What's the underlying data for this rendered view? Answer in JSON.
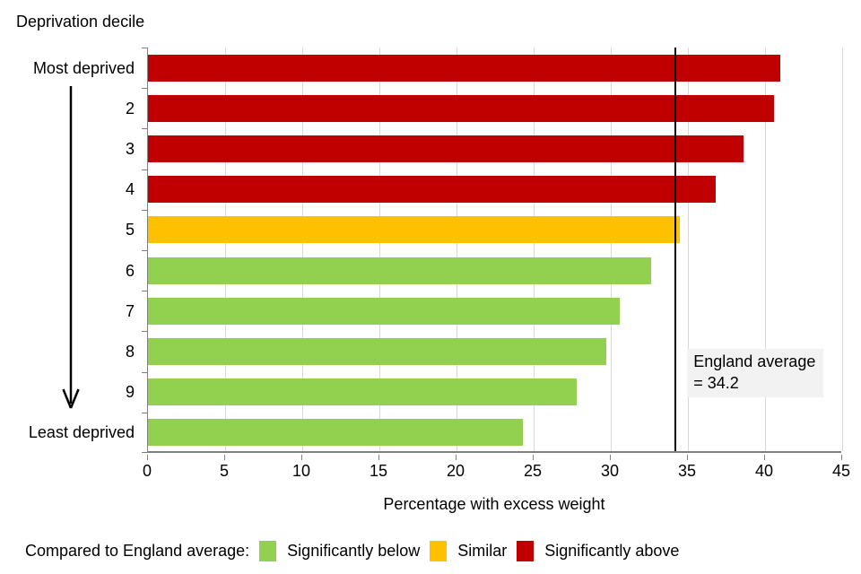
{
  "chart_data": {
    "type": "bar",
    "orientation": "horizontal",
    "title": "Deprivation decile",
    "xlabel": "Percentage with excess weight",
    "ylabel": "Deprivation decile",
    "categories": [
      "Most deprived",
      "2",
      "3",
      "4",
      "5",
      "6",
      "7",
      "8",
      "9",
      "Least deprived"
    ],
    "values": [
      41.0,
      40.6,
      38.6,
      36.8,
      34.5,
      32.6,
      30.6,
      29.7,
      27.8,
      24.3
    ],
    "statuses": [
      "above",
      "above",
      "above",
      "above",
      "similar",
      "below",
      "below",
      "below",
      "below",
      "below"
    ],
    "colors": {
      "below": "#92D050",
      "similar": "#FFC000",
      "above": "#C00000"
    },
    "xlim": [
      0,
      45
    ],
    "xticks": [
      0,
      5,
      10,
      15,
      20,
      25,
      30,
      35,
      40,
      45
    ],
    "grid": true,
    "gridline_color": "#D9D9D9",
    "axis_color": "#808080",
    "reference_line": {
      "value": 34.2,
      "color": "#000000",
      "label_line1": "England average",
      "label_line2": "= 34.2"
    }
  },
  "legend": {
    "prefix": "Compared to England average:",
    "position": "bottom",
    "items": [
      {
        "key": "below",
        "label": "Significantly below",
        "color": "#92D050"
      },
      {
        "key": "similar",
        "label": "Similar",
        "color": "#FFC000"
      },
      {
        "key": "above",
        "label": "Significantly above",
        "color": "#C00000"
      }
    ]
  }
}
